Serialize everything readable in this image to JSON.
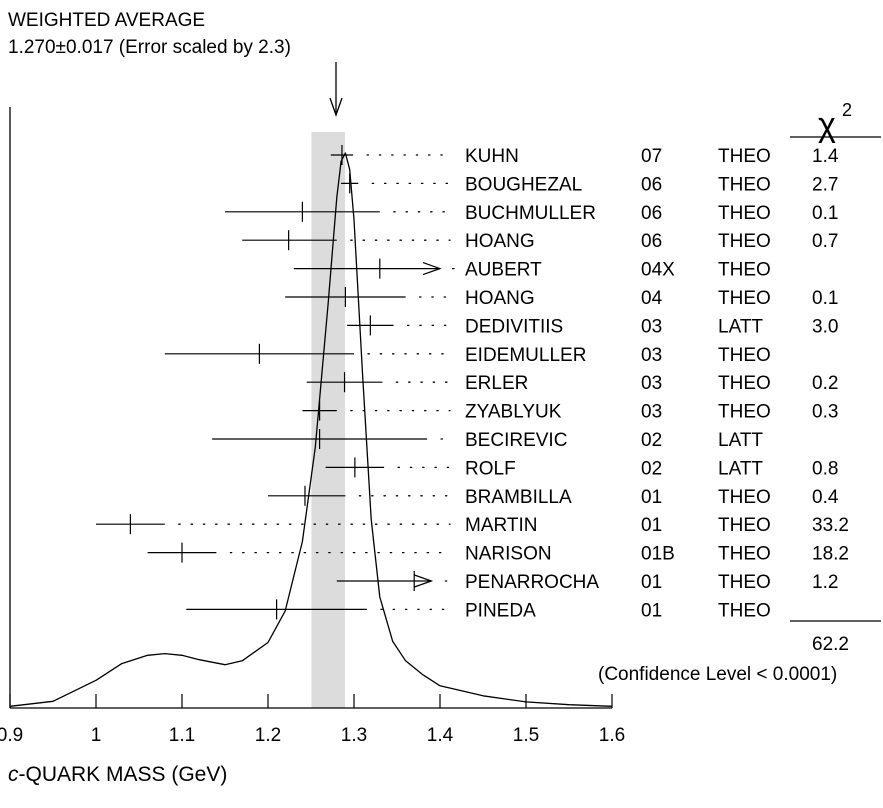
{
  "chart_data": {
    "type": "ideogram",
    "title_line1": "WEIGHTED AVERAGE",
    "title_line2": "1.270±0.017 (Error scaled by 2.3)",
    "weighted_average": {
      "value": 1.27,
      "error": 0.017,
      "scale_factor": 2.3
    },
    "xlabel_prefix": "c",
    "xlabel_rest": "-QUARK MASS (GeV)",
    "xlim": [
      0.9,
      1.6
    ],
    "xticks": [
      "0.9",
      "1",
      "1.1",
      "1.2",
      "1.3",
      "1.4",
      "1.5",
      "1.6"
    ],
    "chi2_header": "χ",
    "chi2_exp": "2",
    "chi2_total": "62.2",
    "confidence_note": "(Confidence Level < 0.0001)",
    "measurements": [
      {
        "author": "KUHN",
        "year": "07",
        "method": "THEO",
        "chi2": "1.4",
        "value": 1.286,
        "lo": 1.273,
        "hi": 1.299
      },
      {
        "author": "BOUGHEZAL",
        "year": "06",
        "method": "THEO",
        "chi2": "2.7",
        "value": 1.295,
        "lo": 1.285,
        "hi": 1.305
      },
      {
        "author": "BUCHMULLER",
        "year": "06",
        "method": "THEO",
        "chi2": "0.1",
        "value": 1.24,
        "lo": 1.15,
        "hi": 1.33
      },
      {
        "author": "HOANG",
        "year": "06",
        "method": "THEO",
        "chi2": "0.7",
        "value": 1.224,
        "lo": 1.17,
        "hi": 1.28
      },
      {
        "author": "AUBERT",
        "year": "04X",
        "method": "THEO",
        "chi2": "",
        "value": 1.33,
        "lo": 1.23,
        "hi": 1.4,
        "arrow": true
      },
      {
        "author": "HOANG",
        "year": "04",
        "method": "THEO",
        "chi2": "0.1",
        "value": 1.29,
        "lo": 1.22,
        "hi": 1.36
      },
      {
        "author": "DEDIVITIIS",
        "year": "03",
        "method": "LATT",
        "chi2": "3.0",
        "value": 1.319,
        "lo": 1.292,
        "hi": 1.346
      },
      {
        "author": "EIDEMULLER",
        "year": "03",
        "method": "THEO",
        "chi2": "",
        "value": 1.19,
        "lo": 1.08,
        "hi": 1.3
      },
      {
        "author": "ERLER",
        "year": "03",
        "method": "THEO",
        "chi2": "0.2",
        "value": 1.289,
        "lo": 1.245,
        "hi": 1.333
      },
      {
        "author": "ZYABLYUK",
        "year": "03",
        "method": "THEO",
        "chi2": "0.3",
        "value": 1.26,
        "lo": 1.24,
        "hi": 1.28
      },
      {
        "author": "BECIREVIC",
        "year": "02",
        "method": "LATT",
        "chi2": "",
        "value": 1.26,
        "lo": 1.135,
        "hi": 1.385
      },
      {
        "author": "ROLF",
        "year": "02",
        "method": "LATT",
        "chi2": "0.8",
        "value": 1.301,
        "lo": 1.267,
        "hi": 1.335
      },
      {
        "author": "BRAMBILLA",
        "year": "01",
        "method": "THEO",
        "chi2": "0.4",
        "value": 1.243,
        "lo": 1.2,
        "hi": 1.29
      },
      {
        "author": "MARTIN",
        "year": "01",
        "method": "THEO",
        "chi2": "33.2",
        "value": 1.04,
        "lo": 1.0,
        "hi": 1.08
      },
      {
        "author": "NARISON",
        "year": "01B",
        "method": "THEO",
        "chi2": "18.2",
        "value": 1.1,
        "lo": 1.06,
        "hi": 1.14
      },
      {
        "author": "PENARROCHA",
        "year": "01",
        "method": "THEO",
        "chi2": "1.2",
        "value": 1.37,
        "lo": 1.28,
        "hi": 1.39,
        "arrow": true
      },
      {
        "author": "PINEDA",
        "year": "01",
        "method": "THEO",
        "chi2": "",
        "value": 1.21,
        "lo": 1.105,
        "hi": 1.315
      }
    ],
    "ideogram_curve": [
      [
        0.9,
        0.003
      ],
      [
        0.95,
        0.012
      ],
      [
        1.0,
        0.05
      ],
      [
        1.03,
        0.08
      ],
      [
        1.06,
        0.095
      ],
      [
        1.08,
        0.098
      ],
      [
        1.1,
        0.095
      ],
      [
        1.12,
        0.087
      ],
      [
        1.15,
        0.078
      ],
      [
        1.17,
        0.085
      ],
      [
        1.2,
        0.118
      ],
      [
        1.22,
        0.175
      ],
      [
        1.24,
        0.3
      ],
      [
        1.255,
        0.47
      ],
      [
        1.27,
        0.73
      ],
      [
        1.28,
        0.92
      ],
      [
        1.285,
        0.985
      ],
      [
        1.29,
        1.0
      ],
      [
        1.295,
        0.97
      ],
      [
        1.3,
        0.88
      ],
      [
        1.31,
        0.6
      ],
      [
        1.32,
        0.34
      ],
      [
        1.33,
        0.2
      ],
      [
        1.345,
        0.12
      ],
      [
        1.36,
        0.085
      ],
      [
        1.38,
        0.06
      ],
      [
        1.4,
        0.04
      ],
      [
        1.45,
        0.022
      ],
      [
        1.5,
        0.011
      ],
      [
        1.55,
        0.006
      ],
      [
        1.6,
        0.003
      ]
    ]
  }
}
